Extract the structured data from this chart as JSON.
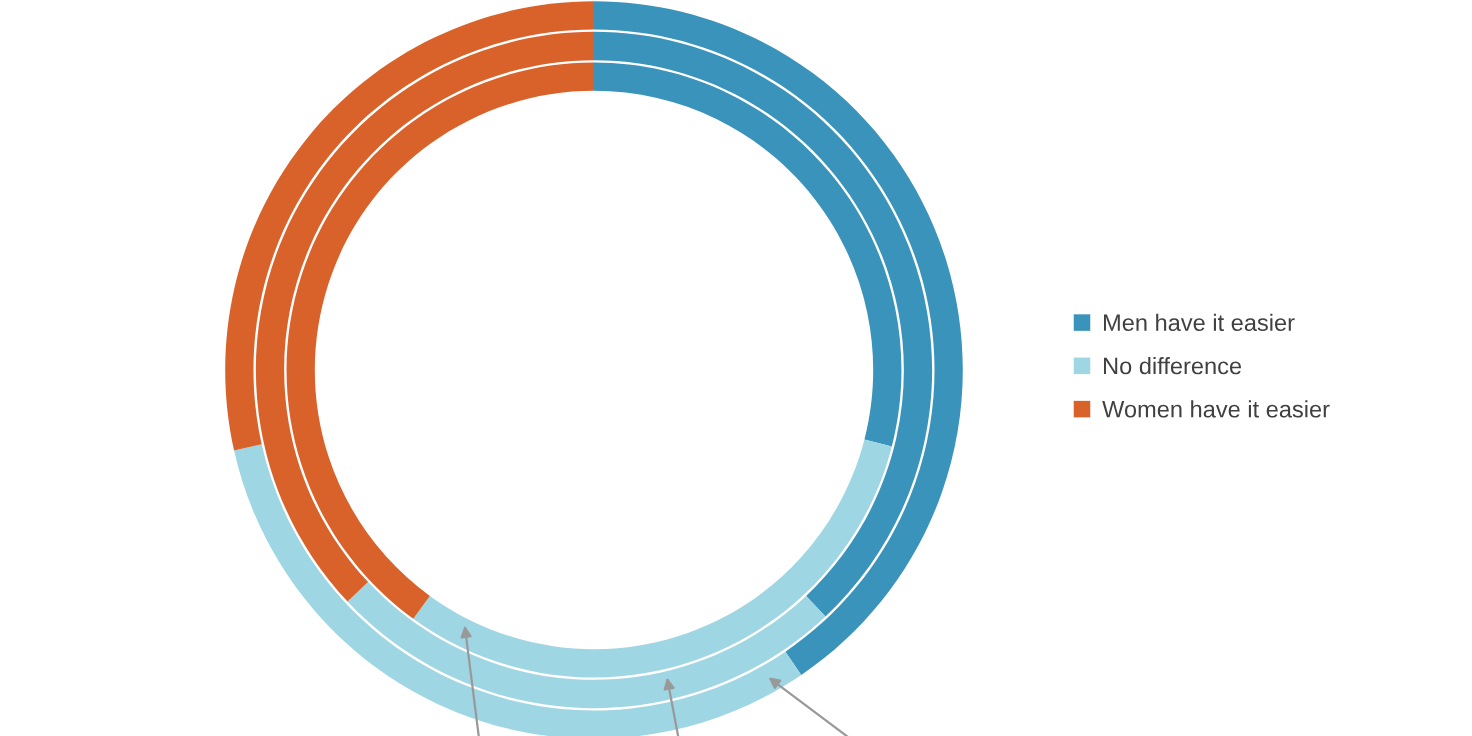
{
  "chart_data": {
    "type": "donut",
    "categories": [
      "Men have it easier",
      "No difference",
      "Women have it easier"
    ],
    "colors": [
      "#3a93bb",
      "#9fd6e3",
      "#d9622b"
    ],
    "series": [
      {
        "values": [
          29,
          31,
          40
        ]
      },
      {
        "values": [
          38,
          25,
          37
        ]
      },
      {
        "values": [
          40.5,
          31,
          28.5
        ]
      }
    ],
    "legend": "right"
  }
}
